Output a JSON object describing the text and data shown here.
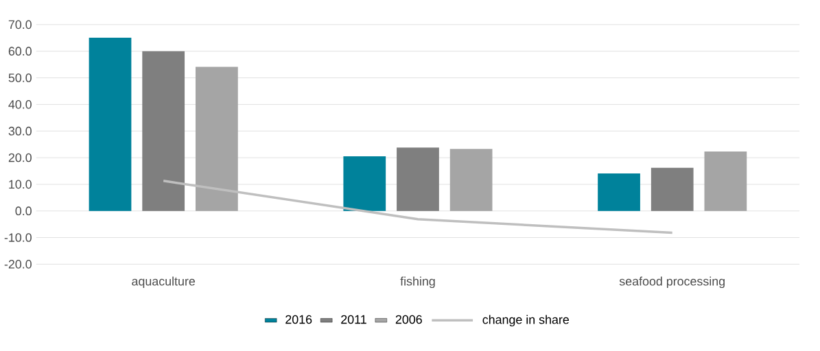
{
  "chart_data": {
    "type": "bar",
    "categories": [
      "aquaculture",
      "fishing",
      "seafood processing"
    ],
    "series": [
      {
        "name": "2016",
        "color": "#00829b",
        "values": [
          65.1,
          20.5,
          14.1
        ]
      },
      {
        "name": "2011",
        "color": "#7f7f7f",
        "values": [
          60.0,
          23.8,
          16.2
        ]
      },
      {
        "name": "2006",
        "color": "#a5a5a5",
        "values": [
          54.1,
          23.3,
          22.3
        ]
      },
      {
        "name": "change in share",
        "type": "line",
        "color": "#bfbfbf",
        "values": [
          11.3,
          -3.1,
          -8.2
        ]
      }
    ],
    "ylim": [
      -20,
      70
    ],
    "yticks": [
      {
        "value": -20,
        "label": "-20.0"
      },
      {
        "value": -10,
        "label": "-10.0"
      },
      {
        "value": 0,
        "label": "0.0"
      },
      {
        "value": 10,
        "label": "10.0"
      },
      {
        "value": 20,
        "label": "20.0"
      },
      {
        "value": 30,
        "label": "30.0"
      },
      {
        "value": 40,
        "label": "40.0"
      },
      {
        "value": 50,
        "label": "50.0"
      },
      {
        "value": 60,
        "label": "60.0"
      },
      {
        "value": 70,
        "label": "70.0"
      }
    ],
    "grid": "y",
    "legend": "bottom"
  }
}
